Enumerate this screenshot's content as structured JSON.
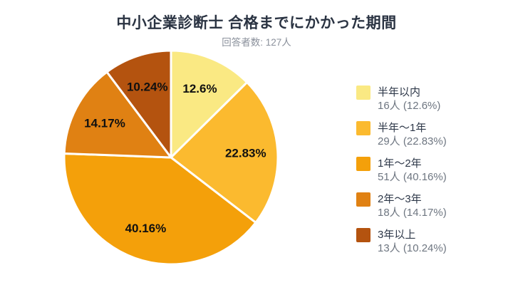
{
  "title": "中小企業診断士 合格までにかかった期間",
  "subtitle": "回答者数: 127人",
  "colors": {
    "background": "#ffffff",
    "title_text": "#2a3342",
    "subtitle_text": "#8a909b",
    "legend_label_text": "#2d3748",
    "legend_value_text": "#6e7681",
    "slice_label_text": "#101010",
    "slice_stroke": "#ffffff"
  },
  "chart_data": {
    "type": "pie",
    "title": "中小企業診断士 合格までにかかった期間",
    "subtitle": "回答者数: 127人",
    "respondents_total": 127,
    "categories": [
      "半年以内",
      "半年〜1年",
      "1年〜2年",
      "2年〜3年",
      "3年以上"
    ],
    "counts": [
      16,
      29,
      51,
      18,
      13
    ],
    "percentages": [
      12.6,
      22.83,
      40.16,
      14.17,
      10.24
    ],
    "slice_labels": [
      "12.6%",
      "22.83%",
      "40.16%",
      "14.17%",
      "10.24%"
    ],
    "slice_colors": [
      "#fae983",
      "#fbba2f",
      "#f4a00a",
      "#e08113",
      "#b4530f"
    ],
    "start_angle_deg": 0,
    "direction": "clockwise",
    "legend_position": "right",
    "legend": [
      {
        "label": "半年以内",
        "value": "16人 (12.6%)"
      },
      {
        "label": "半年〜1年",
        "value": "29人 (22.83%)"
      },
      {
        "label": "1年〜2年",
        "value": "51人 (40.16%)"
      },
      {
        "label": "2年〜3年",
        "value": "18人 (14.17%)"
      },
      {
        "label": "3年以上",
        "value": "13人 (10.24%)"
      }
    ]
  }
}
